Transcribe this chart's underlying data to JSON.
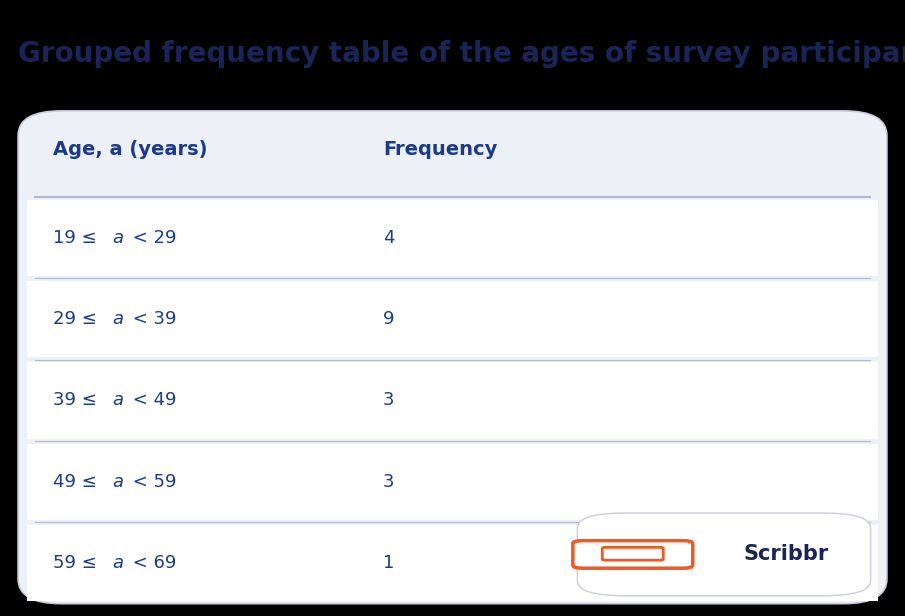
{
  "title": "Grouped frequency table of the ages of survey participants",
  "title_color": "#1a2456",
  "title_fontsize": 20,
  "bg_color": "#000000",
  "table_bg_color": "#eef0f8",
  "header_bg_color": "#eef0f8",
  "divider_color": "#b0b8cc",
  "row_bg_color": "#ffffff",
  "col1_header": "Age, a (years)",
  "col2_header": "Frequency",
  "header_text_color": "#1a3a8a",
  "cell_text_color": "#1a3a8a",
  "rows": [
    [
      "19 ≤ a < 29",
      "4"
    ],
    [
      "29 ≤ a < 39",
      "9"
    ],
    [
      "39 ≤ a < 49",
      "3"
    ],
    [
      "49 ≤ a < 59",
      "3"
    ],
    [
      "59 ≤ a < 69",
      "1"
    ]
  ],
  "scribbr_text": "Scribbr",
  "scribbr_text_color": "#1a2456",
  "scribbr_orange": "#f05a22"
}
